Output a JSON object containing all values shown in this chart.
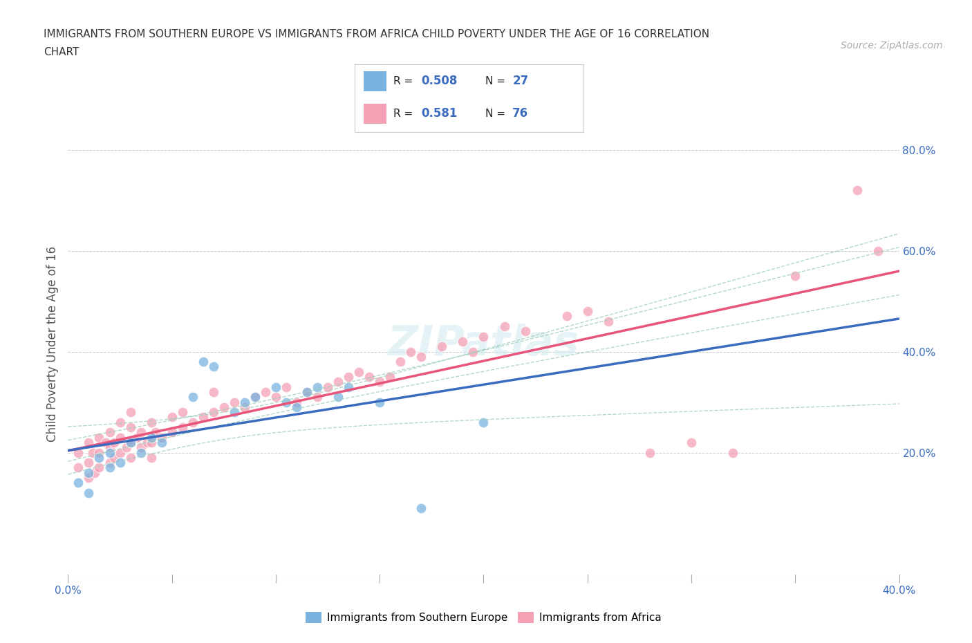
{
  "title_line1": "IMMIGRANTS FROM SOUTHERN EUROPE VS IMMIGRANTS FROM AFRICA CHILD POVERTY UNDER THE AGE OF 16 CORRELATION",
  "title_line2": "CHART",
  "source": "Source: ZipAtlas.com",
  "ylabel": "Child Poverty Under the Age of 16",
  "xlim": [
    0.0,
    0.4
  ],
  "ylim": [
    -0.05,
    0.88
  ],
  "r_southern_europe": 0.508,
  "n_southern_europe": 27,
  "r_africa": 0.581,
  "n_africa": 76,
  "color_southern_europe": "#7ab3e0",
  "color_africa": "#f4a0b5",
  "trendline_southern_europe": "#3a6bbf",
  "trendline_africa": "#e8547a",
  "ci_color": "#9ecfba",
  "watermark": "ZIPatlas",
  "se_x": [
    0.005,
    0.01,
    0.01,
    0.015,
    0.02,
    0.02,
    0.025,
    0.03,
    0.035,
    0.04,
    0.045,
    0.06,
    0.065,
    0.07,
    0.08,
    0.085,
    0.09,
    0.1,
    0.105,
    0.11,
    0.115,
    0.12,
    0.13,
    0.135,
    0.15,
    0.17,
    0.2
  ],
  "se_y": [
    0.14,
    0.16,
    0.12,
    0.19,
    0.2,
    0.17,
    0.18,
    0.22,
    0.2,
    0.23,
    0.22,
    0.31,
    0.38,
    0.37,
    0.28,
    0.3,
    0.31,
    0.33,
    0.3,
    0.29,
    0.32,
    0.33,
    0.31,
    0.33,
    0.3,
    0.09,
    0.26
  ],
  "af_x": [
    0.005,
    0.005,
    0.01,
    0.01,
    0.01,
    0.012,
    0.013,
    0.015,
    0.015,
    0.015,
    0.018,
    0.02,
    0.02,
    0.02,
    0.022,
    0.022,
    0.025,
    0.025,
    0.025,
    0.028,
    0.03,
    0.03,
    0.03,
    0.03,
    0.033,
    0.035,
    0.035,
    0.038,
    0.04,
    0.04,
    0.04,
    0.042,
    0.045,
    0.05,
    0.05,
    0.055,
    0.055,
    0.06,
    0.065,
    0.07,
    0.07,
    0.075,
    0.08,
    0.085,
    0.09,
    0.095,
    0.1,
    0.105,
    0.11,
    0.115,
    0.12,
    0.125,
    0.13,
    0.135,
    0.14,
    0.145,
    0.15,
    0.155,
    0.16,
    0.165,
    0.17,
    0.18,
    0.19,
    0.195,
    0.2,
    0.21,
    0.22,
    0.24,
    0.25,
    0.26,
    0.28,
    0.3,
    0.32,
    0.35,
    0.38,
    0.39
  ],
  "af_y": [
    0.17,
    0.2,
    0.15,
    0.18,
    0.22,
    0.2,
    0.16,
    0.17,
    0.2,
    0.23,
    0.22,
    0.18,
    0.21,
    0.24,
    0.19,
    0.22,
    0.2,
    0.23,
    0.26,
    0.21,
    0.19,
    0.22,
    0.25,
    0.28,
    0.23,
    0.21,
    0.24,
    0.22,
    0.19,
    0.22,
    0.26,
    0.24,
    0.23,
    0.24,
    0.27,
    0.25,
    0.28,
    0.26,
    0.27,
    0.28,
    0.32,
    0.29,
    0.3,
    0.29,
    0.31,
    0.32,
    0.31,
    0.33,
    0.3,
    0.32,
    0.31,
    0.33,
    0.34,
    0.35,
    0.36,
    0.35,
    0.34,
    0.35,
    0.38,
    0.4,
    0.39,
    0.41,
    0.42,
    0.4,
    0.43,
    0.45,
    0.44,
    0.47,
    0.48,
    0.46,
    0.2,
    0.22,
    0.2,
    0.55,
    0.72,
    0.6
  ]
}
